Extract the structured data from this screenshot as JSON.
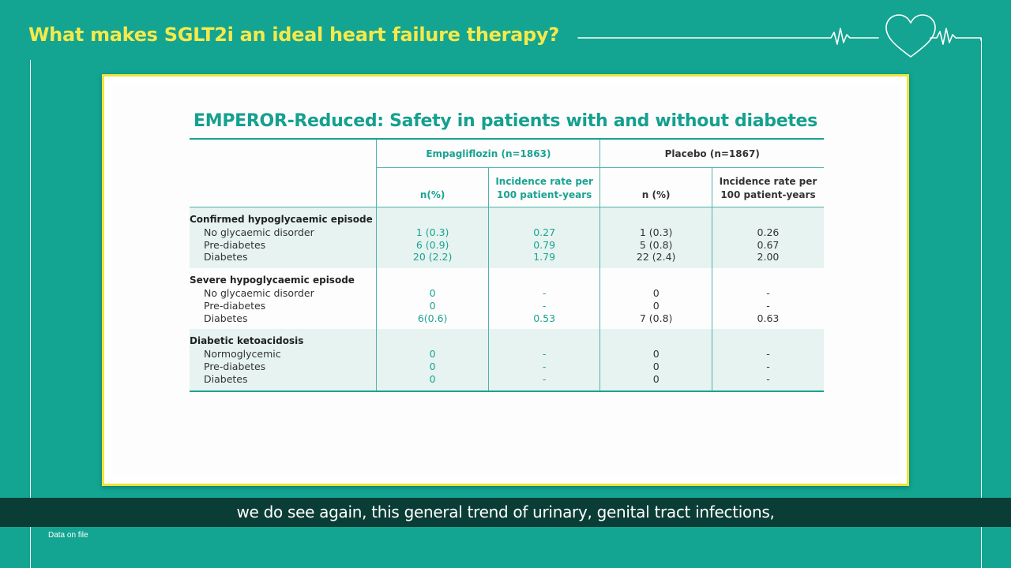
{
  "header": {
    "title": "What makes SGLT2i an ideal heart failure therapy?"
  },
  "slide": {
    "title": "EMPEROR-Reduced: Safety in patients with and without diabetes",
    "groups": {
      "empagliflozin": "Empagliflozin (n=1863)",
      "placebo": "Placebo (n=1867)"
    },
    "columns": {
      "emp_n": "n(%)",
      "emp_rate": "Incidence rate per 100 patient-years",
      "pla_n": "n (%)",
      "pla_rate": "Incidence rate per 100 patient-years"
    },
    "sections": [
      {
        "label": "Confirmed hypoglycaemic episode",
        "rows": [
          {
            "name": "No glycaemic disorder",
            "emp_n": "1 (0.3)",
            "emp_rate": "0.27",
            "pla_n": "1 (0.3)",
            "pla_rate": "0.26"
          },
          {
            "name": "Pre-diabetes",
            "emp_n": "6 (0.9)",
            "emp_rate": "0.79",
            "pla_n": "5 (0.8)",
            "pla_rate": "0.67"
          },
          {
            "name": "Diabetes",
            "emp_n": "20 (2.2)",
            "emp_rate": "1.79",
            "pla_n": "22 (2.4)",
            "pla_rate": "2.00"
          }
        ]
      },
      {
        "label": "Severe hypoglycaemic episode",
        "rows": [
          {
            "name": "No glycaemic disorder",
            "emp_n": "0",
            "emp_rate": "-",
            "pla_n": "0",
            "pla_rate": "-"
          },
          {
            "name": "Pre-diabetes",
            "emp_n": "0",
            "emp_rate": "-",
            "pla_n": "0",
            "pla_rate": "-"
          },
          {
            "name": "Diabetes",
            "emp_n": "6(0.6)",
            "emp_rate": "0.53",
            "pla_n": "7 (0.8)",
            "pla_rate": "0.63"
          }
        ]
      },
      {
        "label": "Diabetic ketoacidosis",
        "rows": [
          {
            "name": "Normoglycemic",
            "emp_n": "0",
            "emp_rate": "-",
            "pla_n": "0",
            "pla_rate": "-"
          },
          {
            "name": "Pre-diabetes",
            "emp_n": "0",
            "emp_rate": "-",
            "pla_n": "0",
            "pla_rate": "-"
          },
          {
            "name": "Diabetes",
            "emp_n": "0",
            "emp_rate": "-",
            "pla_n": "0",
            "pla_rate": "-"
          }
        ]
      }
    ]
  },
  "caption": "we do see again, this general trend of urinary, genital tract infections,",
  "footnote": "Data on file",
  "colors": {
    "background": "#13a592",
    "headline": "#f6e94b",
    "slide_border": "#efe43c",
    "accent_teal": "#1aa391",
    "caption_bar": "#0a3d35"
  },
  "icons": [
    "heart-ecg-icon"
  ]
}
